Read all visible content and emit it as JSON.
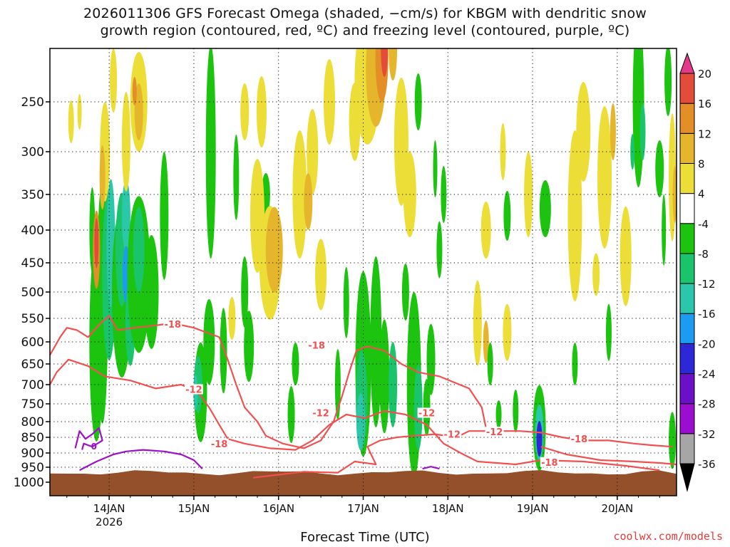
{
  "title": {
    "line1": "2026011306 GFS Forecast Omega (shaded, −cm/s) for KBGM with dendritic snow",
    "line2": "growth region (contoured, red, ºC) and freezing level (contoured, purple, ºC)"
  },
  "credit": "coolwx.com/models",
  "chart_data": {
    "type": "heatmap",
    "title": "2026011306 GFS Forecast Omega (shaded, −cm/s) for KBGM with dendritic snow growth region (contoured, red, ºC) and freezing level (contoured, purple, ºC)",
    "xlabel": "Forecast Time (UTC)",
    "ylabel": "",
    "x_range_days": [
      0,
      7.4
    ],
    "x_ticks": [
      {
        "day": 0.7,
        "label": "14JAN",
        "sub": "2026"
      },
      {
        "day": 1.7,
        "label": "15JAN"
      },
      {
        "day": 2.7,
        "label": "16JAN"
      },
      {
        "day": 3.7,
        "label": "17JAN"
      },
      {
        "day": 4.7,
        "label": "18JAN"
      },
      {
        "day": 5.7,
        "label": "19JAN"
      },
      {
        "day": 6.7,
        "label": "20JAN"
      }
    ],
    "y_range_hpa": [
      1000,
      200
    ],
    "y_ticks": [
      250,
      300,
      350,
      400,
      450,
      500,
      550,
      600,
      650,
      700,
      750,
      800,
      850,
      900,
      950,
      1000
    ],
    "colorbar": {
      "levels": [
        -36,
        -32,
        -28,
        -24,
        -20,
        -16,
        -12,
        -8,
        -4,
        4,
        8,
        12,
        16,
        20
      ],
      "labels": [
        "-36",
        "-32",
        "-28",
        "-24",
        "-20",
        "-16",
        "-12",
        "-8",
        "-4",
        "4",
        "8",
        "12",
        "16",
        "20"
      ],
      "colors": [
        "#000000",
        "#a6a6a6",
        "#9b0dd1",
        "#6b10c9",
        "#2e27d8",
        "#1b9cf2",
        "#2ac7a8",
        "#19c46b",
        "#1cc30f",
        "#ffffff",
        "#ecdd37",
        "#e5b52b",
        "#e48e27",
        "#e44c3a",
        "#e23a88"
      ]
    },
    "contour_labels": {
      "red": [
        "-18",
        "-12",
        "-18",
        "-18",
        "-12",
        "-12",
        "-12",
        "-18",
        "-18",
        "-12"
      ],
      "purple": [
        "0"
      ]
    },
    "ground_color": "#94502a",
    "dsgz_color": "#f25050",
    "freezing_color": "#9b12c8"
  }
}
